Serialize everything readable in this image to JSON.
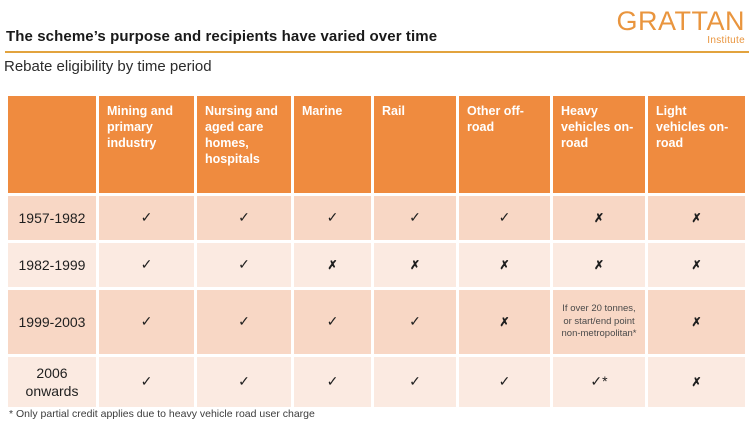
{
  "header": {
    "title": "The scheme’s purpose and recipients have varied over time",
    "subtitle": "Rebate eligibility by time period",
    "logo_text": "GRATTAN",
    "logo_subtext": "Institute"
  },
  "colors": {
    "header_orange": "#ef8b3f",
    "row_dark_peach": "#f8d7c5",
    "row_light_peach": "#fbeae1",
    "title_rule_gold": "#e2a33e",
    "logo_orange": "#e9953e"
  },
  "glyphs": {
    "check": "✓",
    "cross": "✗",
    "check_star": "✓*"
  },
  "chart_data": {
    "type": "table",
    "title": "The scheme’s purpose and recipients have varied over time",
    "subtitle": "Rebate eligibility by time period",
    "columns": [
      "",
      "Mining and primary industry",
      "Nursing and aged care homes, hospitals",
      "Marine",
      "Rail",
      "Other off-road",
      "Heavy vehicles on-road",
      "Light vehicles on-road"
    ],
    "rows": [
      {
        "period": "1957-1982",
        "cells": [
          "check",
          "check",
          "check",
          "check",
          "check",
          "cross",
          "cross"
        ]
      },
      {
        "period": "1982-1999",
        "cells": [
          "check",
          "check",
          "cross",
          "cross",
          "cross",
          "cross",
          "cross"
        ]
      },
      {
        "period": "1999-2003",
        "cells": [
          "check",
          "check",
          "check",
          "check",
          "cross",
          "If over 20 tonnes, or start/end point non-metropolitan*",
          "cross"
        ]
      },
      {
        "period": "2006 onwards",
        "cells": [
          "check",
          "check",
          "check",
          "check",
          "check",
          "check_star",
          "cross"
        ]
      }
    ],
    "footnote": "* Only partial credit applies due to heavy vehicle road user charge"
  }
}
